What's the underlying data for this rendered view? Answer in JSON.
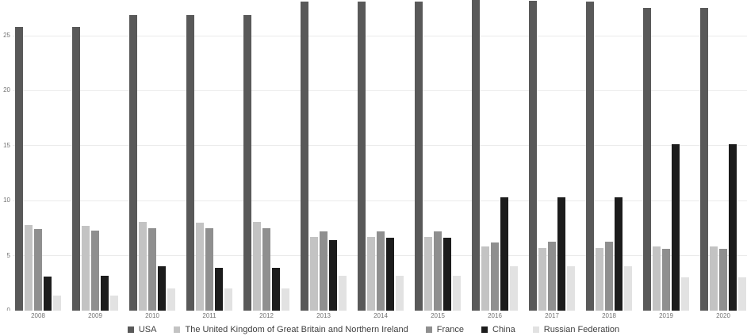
{
  "chart_data": {
    "type": "bar",
    "title": "",
    "xlabel": "",
    "ylabel": "",
    "categories": [
      "2008",
      "2009",
      "2010",
      "2011",
      "2012",
      "2013",
      "2014",
      "2015",
      "2016",
      "2017",
      "2018",
      "2019",
      "2020"
    ],
    "series": [
      {
        "name": "USA",
        "color": "#595959",
        "values": [
          25.8,
          25.8,
          26.9,
          26.9,
          26.9,
          28.1,
          28.1,
          28.1,
          28.4,
          28.2,
          28.1,
          27.5,
          27.5
        ]
      },
      {
        "name": "The United Kingdom of Great Britain and Northern Ireland",
        "color": "#c3c3c3",
        "values": [
          7.8,
          7.7,
          8.1,
          8.0,
          8.1,
          6.7,
          6.7,
          6.7,
          5.8,
          5.7,
          5.7,
          5.8,
          5.8
        ]
      },
      {
        "name": "France",
        "color": "#8f8f8f",
        "values": [
          7.4,
          7.3,
          7.5,
          7.5,
          7.5,
          7.2,
          7.2,
          7.2,
          6.2,
          6.3,
          6.3,
          5.6,
          5.6
        ]
      },
      {
        "name": "China",
        "color": "#1c1c1c",
        "values": [
          3.1,
          3.2,
          4.0,
          3.9,
          3.9,
          6.4,
          6.6,
          6.6,
          10.3,
          10.3,
          10.3,
          15.1,
          15.1
        ]
      },
      {
        "name": "Russian Federation",
        "color": "#e2e2e2",
        "values": [
          1.4,
          1.4,
          2.0,
          2.0,
          2.0,
          3.2,
          3.2,
          3.2,
          4.0,
          4.0,
          4.0,
          3.0,
          3.0
        ]
      }
    ],
    "yticks": [
      0,
      5,
      10,
      15,
      20,
      25
    ],
    "ylim": [
      0,
      28.5
    ],
    "grid": true,
    "legend_position": "bottom"
  },
  "colors": {
    "background": "#ffffff",
    "gridline": "#ebebeb",
    "axis_text": "#737373",
    "legend_text": "#404040"
  }
}
